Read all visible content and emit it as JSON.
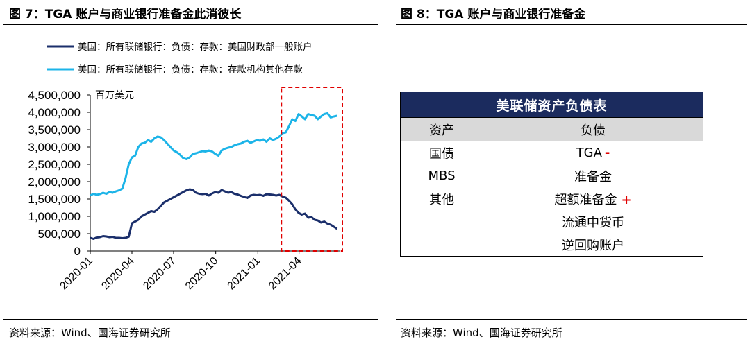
{
  "left_figure": {
    "title": "图 7：TGA 账户与商业银行准备金此消彼长",
    "source": "资料来源：Wind、国海证券研究所"
  },
  "right_figure": {
    "title": "图 8：TGA 账户与商业银行准备金",
    "source": "资料来源：Wind、国海证券研究所"
  },
  "colors": {
    "tga_line": "#1b2f6b",
    "reserve_line": "#1cb4e8",
    "highlight_box": "#e00000",
    "table_header_bg": "#1b2b5e",
    "table_subheader_bg": "#d9d9d9",
    "marker_red": "#e00000"
  },
  "chart_data": {
    "type": "line",
    "unit_label": "百万美元",
    "ylim": [
      0,
      4500000
    ],
    "yticks": [
      "0",
      "500,000",
      "1,000,000",
      "1,500,000",
      "2,000,000",
      "2,500,000",
      "3,000,000",
      "3,500,000",
      "4,000,000",
      "4,500,000"
    ],
    "xlim": [
      "2020-01",
      "2021-06"
    ],
    "xticks": [
      "2020-01",
      "2020-04",
      "2020-07",
      "2020-10",
      "2021-01",
      "2021-04"
    ],
    "legend_position": "top-left",
    "highlight_range": [
      "2021-03",
      "2021-06"
    ],
    "series": [
      {
        "name": "美国：所有联储银行：负债：存款：美国财政部一般账户",
        "points": [
          [
            "2020-01-01",
            380000
          ],
          [
            "2020-01-08",
            350000
          ],
          [
            "2020-01-15",
            390000
          ],
          [
            "2020-01-22",
            400000
          ],
          [
            "2020-01-29",
            430000
          ],
          [
            "2020-02-05",
            420000
          ],
          [
            "2020-02-12",
            400000
          ],
          [
            "2020-02-19",
            410000
          ],
          [
            "2020-02-26",
            380000
          ],
          [
            "2020-03-04",
            380000
          ],
          [
            "2020-03-11",
            370000
          ],
          [
            "2020-03-18",
            380000
          ],
          [
            "2020-03-25",
            410000
          ],
          [
            "2020-04-01",
            800000
          ],
          [
            "2020-04-08",
            850000
          ],
          [
            "2020-04-15",
            900000
          ],
          [
            "2020-04-22",
            1000000
          ],
          [
            "2020-04-29",
            1050000
          ],
          [
            "2020-05-06",
            1100000
          ],
          [
            "2020-05-13",
            1150000
          ],
          [
            "2020-05-20",
            1130000
          ],
          [
            "2020-05-27",
            1200000
          ],
          [
            "2020-06-03",
            1300000
          ],
          [
            "2020-06-10",
            1400000
          ],
          [
            "2020-06-17",
            1450000
          ],
          [
            "2020-06-24",
            1500000
          ],
          [
            "2020-07-01",
            1550000
          ],
          [
            "2020-07-08",
            1600000
          ],
          [
            "2020-07-15",
            1650000
          ],
          [
            "2020-07-22",
            1700000
          ],
          [
            "2020-07-29",
            1750000
          ],
          [
            "2020-08-05",
            1780000
          ],
          [
            "2020-08-12",
            1760000
          ],
          [
            "2020-08-19",
            1680000
          ],
          [
            "2020-08-26",
            1650000
          ],
          [
            "2020-09-02",
            1640000
          ],
          [
            "2020-09-09",
            1650000
          ],
          [
            "2020-09-16",
            1600000
          ],
          [
            "2020-09-23",
            1660000
          ],
          [
            "2020-09-30",
            1700000
          ],
          [
            "2020-10-07",
            1680000
          ],
          [
            "2020-10-14",
            1760000
          ],
          [
            "2020-10-21",
            1720000
          ],
          [
            "2020-10-28",
            1680000
          ],
          [
            "2020-11-04",
            1700000
          ],
          [
            "2020-11-11",
            1650000
          ],
          [
            "2020-11-18",
            1630000
          ],
          [
            "2020-11-25",
            1590000
          ],
          [
            "2020-12-02",
            1560000
          ],
          [
            "2020-12-09",
            1530000
          ],
          [
            "2020-12-16",
            1600000
          ],
          [
            "2020-12-23",
            1620000
          ],
          [
            "2020-12-30",
            1610000
          ],
          [
            "2021-01-06",
            1620000
          ],
          [
            "2021-01-13",
            1590000
          ],
          [
            "2021-01-20",
            1640000
          ],
          [
            "2021-01-27",
            1630000
          ],
          [
            "2021-02-03",
            1620000
          ],
          [
            "2021-02-10",
            1600000
          ],
          [
            "2021-02-17",
            1620000
          ],
          [
            "2021-02-24",
            1570000
          ],
          [
            "2021-03-03",
            1540000
          ],
          [
            "2021-03-10",
            1450000
          ],
          [
            "2021-03-17",
            1350000
          ],
          [
            "2021-03-24",
            1200000
          ],
          [
            "2021-03-31",
            1100000
          ],
          [
            "2021-04-07",
            1050000
          ],
          [
            "2021-04-14",
            1080000
          ],
          [
            "2021-04-21",
            960000
          ],
          [
            "2021-04-28",
            980000
          ],
          [
            "2021-05-05",
            900000
          ],
          [
            "2021-05-12",
            880000
          ],
          [
            "2021-05-19",
            820000
          ],
          [
            "2021-05-26",
            850000
          ],
          [
            "2021-06-02",
            790000
          ],
          [
            "2021-06-09",
            760000
          ],
          [
            "2021-06-16",
            700000
          ],
          [
            "2021-06-23",
            640000
          ]
        ]
      },
      {
        "name": "美国：所有联储银行：负债：存款：存款机构其他存款",
        "points": [
          [
            "2020-01-01",
            1600000
          ],
          [
            "2020-01-08",
            1650000
          ],
          [
            "2020-01-15",
            1620000
          ],
          [
            "2020-01-22",
            1640000
          ],
          [
            "2020-01-29",
            1680000
          ],
          [
            "2020-02-05",
            1650000
          ],
          [
            "2020-02-12",
            1700000
          ],
          [
            "2020-02-19",
            1680000
          ],
          [
            "2020-02-26",
            1720000
          ],
          [
            "2020-03-04",
            1750000
          ],
          [
            "2020-03-11",
            1800000
          ],
          [
            "2020-03-18",
            2100000
          ],
          [
            "2020-03-25",
            2500000
          ],
          [
            "2020-04-01",
            2700000
          ],
          [
            "2020-04-08",
            2750000
          ],
          [
            "2020-04-15",
            3000000
          ],
          [
            "2020-04-22",
            3100000
          ],
          [
            "2020-04-29",
            3120000
          ],
          [
            "2020-05-06",
            3200000
          ],
          [
            "2020-05-13",
            3150000
          ],
          [
            "2020-05-20",
            3250000
          ],
          [
            "2020-05-27",
            3300000
          ],
          [
            "2020-06-03",
            3280000
          ],
          [
            "2020-06-10",
            3200000
          ],
          [
            "2020-06-17",
            3100000
          ],
          [
            "2020-06-24",
            3000000
          ],
          [
            "2020-07-01",
            2900000
          ],
          [
            "2020-07-08",
            2850000
          ],
          [
            "2020-07-15",
            2780000
          ],
          [
            "2020-07-22",
            2680000
          ],
          [
            "2020-07-29",
            2650000
          ],
          [
            "2020-08-05",
            2700000
          ],
          [
            "2020-08-12",
            2800000
          ],
          [
            "2020-08-19",
            2820000
          ],
          [
            "2020-08-26",
            2850000
          ],
          [
            "2020-09-02",
            2880000
          ],
          [
            "2020-09-09",
            2870000
          ],
          [
            "2020-09-16",
            2900000
          ],
          [
            "2020-09-23",
            2870000
          ],
          [
            "2020-09-30",
            2800000
          ],
          [
            "2020-10-07",
            2750000
          ],
          [
            "2020-10-14",
            2900000
          ],
          [
            "2020-10-21",
            2950000
          ],
          [
            "2020-10-28",
            2980000
          ],
          [
            "2020-11-04",
            3000000
          ],
          [
            "2020-11-11",
            3050000
          ],
          [
            "2020-11-18",
            3080000
          ],
          [
            "2020-11-25",
            3100000
          ],
          [
            "2020-12-02",
            3150000
          ],
          [
            "2020-12-09",
            3180000
          ],
          [
            "2020-12-16",
            3120000
          ],
          [
            "2020-12-23",
            3160000
          ],
          [
            "2020-12-30",
            3200000
          ],
          [
            "2021-01-06",
            3180000
          ],
          [
            "2021-01-13",
            3220000
          ],
          [
            "2021-01-20",
            3150000
          ],
          [
            "2021-01-27",
            3250000
          ],
          [
            "2021-02-03",
            3200000
          ],
          [
            "2021-02-10",
            3240000
          ],
          [
            "2021-02-17",
            3300000
          ],
          [
            "2021-02-24",
            3400000
          ],
          [
            "2021-03-03",
            3420000
          ],
          [
            "2021-03-10",
            3600000
          ],
          [
            "2021-03-17",
            3800000
          ],
          [
            "2021-03-24",
            3750000
          ],
          [
            "2021-03-31",
            3950000
          ],
          [
            "2021-04-07",
            3880000
          ],
          [
            "2021-04-14",
            3800000
          ],
          [
            "2021-04-21",
            3950000
          ],
          [
            "2021-04-28",
            3920000
          ],
          [
            "2021-05-05",
            3900000
          ],
          [
            "2021-05-12",
            3800000
          ],
          [
            "2021-05-19",
            3880000
          ],
          [
            "2021-05-26",
            3950000
          ],
          [
            "2021-06-02",
            3970000
          ],
          [
            "2021-06-09",
            3850000
          ],
          [
            "2021-06-16",
            3880000
          ],
          [
            "2021-06-23",
            3900000
          ]
        ]
      }
    ]
  },
  "balance_sheet": {
    "title": "美联储资产负债表",
    "assets_header": "资产",
    "liabilities_header": "负债",
    "rows": [
      {
        "asset": "国债",
        "liability": "TGA",
        "marker": "-"
      },
      {
        "asset": "MBS",
        "liability": "准备金",
        "marker": ""
      },
      {
        "asset": "其他",
        "liability": "超额准备金",
        "marker": "+"
      },
      {
        "asset": "",
        "liability": "流通中货币",
        "marker": ""
      },
      {
        "asset": "",
        "liability": "逆回购账户",
        "marker": ""
      }
    ]
  }
}
